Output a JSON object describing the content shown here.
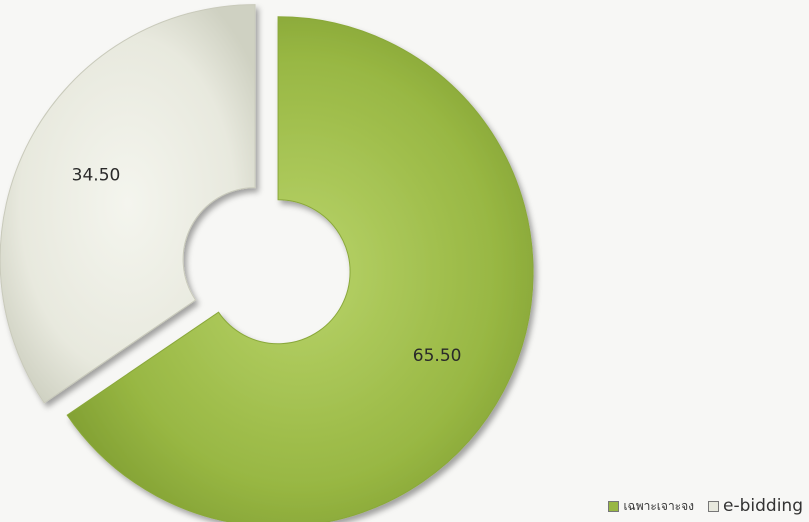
{
  "chart_data": {
    "type": "pie",
    "donut": true,
    "exploded": true,
    "series": [
      {
        "name": "เฉพาะเจาะจง",
        "value": 65.5,
        "label": "65.50",
        "color": "#98b743"
      },
      {
        "name": "e-bidding",
        "value": 34.5,
        "label": "34.50",
        "color": "#e8e9de"
      }
    ],
    "legend_position": "bottom-right"
  }
}
